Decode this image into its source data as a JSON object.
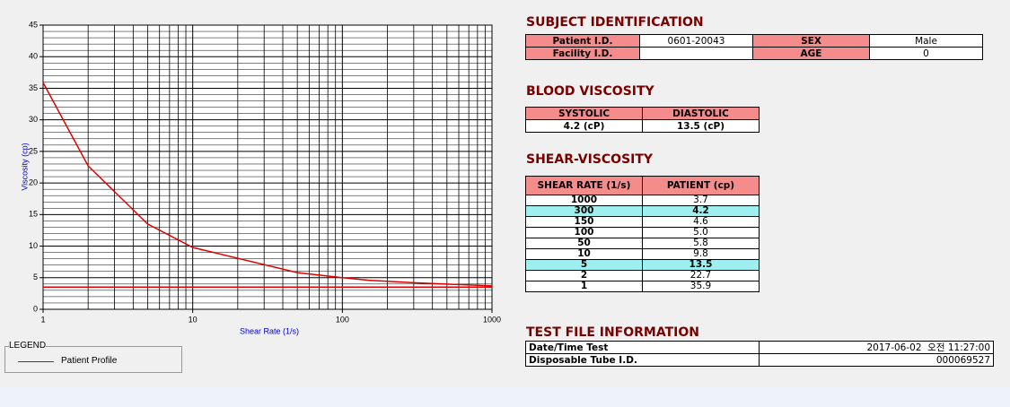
{
  "chart_data": {
    "type": "line",
    "xlabel": "Shear Rate (1/s)",
    "ylabel": "Viscosity (cp)",
    "legend_title": "LEGEND",
    "xscale": "log",
    "xlim": [
      1,
      1000
    ],
    "ylim": [
      0,
      45
    ],
    "xticks": [
      1,
      10,
      100,
      1000
    ],
    "yticks": [
      0,
      5,
      10,
      15,
      20,
      25,
      30,
      35,
      40,
      45
    ],
    "xminor": [
      2,
      3,
      4,
      5,
      6,
      7,
      8,
      9,
      20,
      30,
      40,
      50,
      60,
      70,
      80,
      90,
      200,
      300,
      400,
      500,
      600,
      700,
      800,
      900
    ],
    "yminor": [
      1,
      2,
      3,
      4,
      6,
      7,
      8,
      9,
      11,
      12,
      13,
      14,
      16,
      17,
      18,
      19,
      21,
      22,
      23,
      24,
      26,
      27,
      28,
      29,
      31,
      32,
      33,
      34,
      36,
      37,
      38,
      39,
      41,
      42,
      43,
      44
    ],
    "grid": true,
    "series": [
      {
        "name": "Patient Profile",
        "color": "#e00000",
        "x": [
          1,
          2,
          5,
          10,
          50,
          100,
          150,
          300,
          1000
        ],
        "values": [
          35.9,
          22.7,
          13.5,
          9.8,
          5.8,
          5.0,
          4.6,
          4.2,
          3.7
        ]
      },
      {
        "color": "#e00000",
        "x": [
          1,
          1000
        ],
        "values": [
          3.5,
          3.5
        ]
      }
    ]
  },
  "subject": {
    "title": "SUBJECT IDENTIFICATION",
    "rows": [
      [
        "Patient I.D.",
        "0601-20043",
        "SEX",
        "Male"
      ],
      [
        "Facility I.D.",
        null,
        "AGE",
        "0"
      ]
    ]
  },
  "blood_viscosity": {
    "title": "BLOOD VISCOSITY",
    "headers": [
      "SYSTOLIC",
      "DIASTOLIC"
    ],
    "values": [
      "4.2 (cP)",
      "13.5 (cP)"
    ]
  },
  "shear_viscosity": {
    "title": "SHEAR-VISCOSITY",
    "headers": [
      "SHEAR RATE (1/s)",
      "PATIENT (cp)"
    ],
    "highlighted": [
      1,
      6
    ],
    "rows": [
      [
        "1000",
        "3.7"
      ],
      [
        "300",
        "4.2"
      ],
      [
        "150",
        "4.6"
      ],
      [
        "100",
        "5.0"
      ],
      [
        "50",
        "5.8"
      ],
      [
        "10",
        "9.8"
      ],
      [
        "5",
        "13.5"
      ],
      [
        "2",
        "22.7"
      ],
      [
        "1",
        "35.9"
      ]
    ]
  },
  "test_file": {
    "title": "TEST FILE INFORMATION",
    "rows": [
      [
        "Date/Time Test",
        "2017-06-02  오전 11:27:00"
      ],
      [
        "Disposable Tube I.D.",
        "000069527"
      ]
    ]
  }
}
